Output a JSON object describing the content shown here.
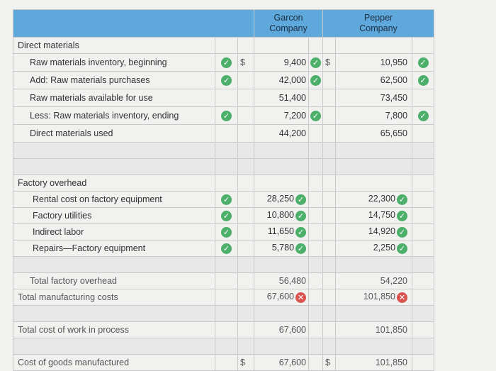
{
  "headers": {
    "garcon": "Garcon\nCompany",
    "pepper": "Pepper\nCompany"
  },
  "currency_symbol": "$",
  "icons": {
    "correct": "check-circle-icon",
    "incorrect": "x-circle-icon"
  },
  "colors": {
    "header_bg": "#5ea8db",
    "correct": "#4caf6a",
    "incorrect": "#d9534f"
  },
  "direct_materials": {
    "heading": "Direct materials",
    "rows": [
      {
        "label": "Raw materials inventory, beginning",
        "garcon": "9,400",
        "pepper": "10,950"
      },
      {
        "label": "Add: Raw materials purchases",
        "garcon": "42,000",
        "pepper": "62,500"
      },
      {
        "label": "Raw materials available for use",
        "garcon": "51,400",
        "pepper": "73,450"
      },
      {
        "label": "Less: Raw materials inventory, ending",
        "garcon": "7,200",
        "pepper": "7,800"
      },
      {
        "label": "Direct materials used",
        "garcon": "44,200",
        "pepper": "65,650"
      }
    ]
  },
  "factory_overhead": {
    "heading": "Factory overhead",
    "rows": [
      {
        "label": "Rental cost on factory equipment",
        "garcon": "28,250",
        "pepper": "22,300"
      },
      {
        "label": "Factory utilities",
        "garcon": "10,800",
        "pepper": "14,750"
      },
      {
        "label": "Indirect labor",
        "garcon": "11,650",
        "pepper": "14,920"
      },
      {
        "label": "Repairs—Factory equipment",
        "garcon": "5,780",
        "pepper": "2,250"
      }
    ]
  },
  "totals": {
    "total_factory_overhead": {
      "label": "Total factory overhead",
      "garcon": "56,480",
      "pepper": "54,220"
    },
    "total_manufacturing_costs": {
      "label": "Total manufacturing costs",
      "garcon": "67,600",
      "pepper": "101,850"
    },
    "total_cost_wip": {
      "label": "Total cost of work in process",
      "garcon": "67,600",
      "pepper": "101,850"
    },
    "cogm": {
      "label": "Cost of goods manufactured",
      "garcon": "67,600",
      "pepper": "101,850"
    }
  }
}
